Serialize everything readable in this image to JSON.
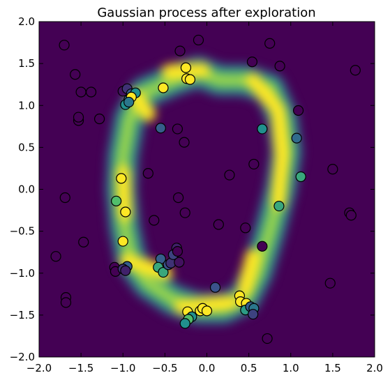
{
  "chart_data": {
    "type": "scatter",
    "title": "Gaussian process after exploration",
    "xlabel": "",
    "ylabel": "",
    "xlim": [
      -2.0,
      2.0
    ],
    "ylim": [
      -2.0,
      2.0
    ],
    "x_ticks": [
      "−2.0",
      "−1.5",
      "−1.0",
      "−0.5",
      "0.0",
      "0.5",
      "1.0",
      "1.5",
      "2.0"
    ],
    "y_ticks": [
      "2.0",
      "1.5",
      "1.0",
      "0.5",
      "0.0",
      "−0.5",
      "−1.0",
      "−1.5",
      "−2.0"
    ],
    "grid": false,
    "background": "heatmap",
    "colormap": [
      "#440154",
      "#3b528b",
      "#21908d",
      "#5dc963",
      "#fde725"
    ],
    "points": [
      {
        "x": -1.7,
        "y": 1.72,
        "v": 0
      },
      {
        "x": -1.57,
        "y": 1.37,
        "v": 0
      },
      {
        "x": -1.5,
        "y": 1.16,
        "v": 0
      },
      {
        "x": -1.38,
        "y": 1.16,
        "v": 0
      },
      {
        "x": -1.53,
        "y": 0.82,
        "v": 0
      },
      {
        "x": -1.53,
        "y": 0.86,
        "v": 0
      },
      {
        "x": -1.28,
        "y": 0.84,
        "v": 0
      },
      {
        "x": -1.69,
        "y": -0.1,
        "v": 0
      },
      {
        "x": -1.47,
        "y": -0.63,
        "v": 0
      },
      {
        "x": -1.8,
        "y": -0.8,
        "v": 0
      },
      {
        "x": -1.1,
        "y": -0.93,
        "v": 0
      },
      {
        "x": -1.09,
        "y": -0.98,
        "v": 0
      },
      {
        "x": -1.68,
        "y": -1.29,
        "v": 0
      },
      {
        "x": -1.68,
        "y": -1.35,
        "v": 0
      },
      {
        "x": -1.0,
        "y": 1.17,
        "v": 0.05
      },
      {
        "x": -0.95,
        "y": 1.2,
        "v": 0.15
      },
      {
        "x": -0.9,
        "y": 1.14,
        "v": 0.3
      },
      {
        "x": -0.85,
        "y": 1.15,
        "v": 0.5
      },
      {
        "x": -0.93,
        "y": 1.07,
        "v": 0.35
      },
      {
        "x": -0.97,
        "y": 1.01,
        "v": 0.5
      },
      {
        "x": -0.9,
        "y": 1.1,
        "v": 1
      },
      {
        "x": -0.93,
        "y": 1.04,
        "v": 0.4
      },
      {
        "x": -0.55,
        "y": 0.73,
        "v": 0.3
      },
      {
        "x": -0.52,
        "y": 1.21,
        "v": 1
      },
      {
        "x": -0.25,
        "y": 1.45,
        "v": 1
      },
      {
        "x": -0.24,
        "y": 1.32,
        "v": 1
      },
      {
        "x": -0.2,
        "y": 1.31,
        "v": 1
      },
      {
        "x": -0.32,
        "y": 1.65,
        "v": 0
      },
      {
        "x": -0.1,
        "y": 1.78,
        "v": 0
      },
      {
        "x": -0.35,
        "y": 0.72,
        "v": 0
      },
      {
        "x": -0.27,
        "y": 0.56,
        "v": 0
      },
      {
        "x": -0.7,
        "y": 0.19,
        "v": 0
      },
      {
        "x": -1.02,
        "y": 0.13,
        "v": 1
      },
      {
        "x": -1.08,
        "y": -0.14,
        "v": 0.7
      },
      {
        "x": -0.97,
        "y": -0.27,
        "v": 1
      },
      {
        "x": -0.63,
        "y": -0.37,
        "v": 0
      },
      {
        "x": -0.34,
        "y": -0.1,
        "v": 0
      },
      {
        "x": -0.26,
        "y": -0.28,
        "v": 0
      },
      {
        "x": -1.0,
        "y": -0.62,
        "v": 1
      },
      {
        "x": -0.95,
        "y": -0.92,
        "v": 0.3
      },
      {
        "x": -1.0,
        "y": -0.95,
        "v": 0.15
      },
      {
        "x": -0.97,
        "y": -0.97,
        "v": 0.1
      },
      {
        "x": -0.55,
        "y": -0.83,
        "v": 0.3
      },
      {
        "x": -0.58,
        "y": -0.93,
        "v": 0.6
      },
      {
        "x": -0.52,
        "y": -0.99,
        "v": 0.6
      },
      {
        "x": -0.46,
        "y": -0.9,
        "v": 0.25
      },
      {
        "x": -0.43,
        "y": -0.88,
        "v": 0.15
      },
      {
        "x": -0.4,
        "y": -0.78,
        "v": 0.2
      },
      {
        "x": -0.36,
        "y": -0.7,
        "v": 0.1
      },
      {
        "x": -0.33,
        "y": -0.87,
        "v": 0.05
      },
      {
        "x": -0.35,
        "y": -0.74,
        "v": 0
      },
      {
        "x": -0.23,
        "y": -1.46,
        "v": 1
      },
      {
        "x": -0.18,
        "y": -1.52,
        "v": 0.5
      },
      {
        "x": -0.22,
        "y": -1.55,
        "v": 0.7
      },
      {
        "x": -0.26,
        "y": -1.6,
        "v": 0.5
      },
      {
        "x": -0.08,
        "y": -1.45,
        "v": 1
      },
      {
        "x": -0.05,
        "y": -1.42,
        "v": 1
      },
      {
        "x": 0.0,
        "y": -1.45,
        "v": 1
      },
      {
        "x": 0.1,
        "y": -1.17,
        "v": 0.25
      },
      {
        "x": 0.14,
        "y": -0.42,
        "v": 0
      },
      {
        "x": 0.27,
        "y": 0.17,
        "v": 0
      },
      {
        "x": 0.39,
        "y": -1.27,
        "v": 1
      },
      {
        "x": 0.4,
        "y": -1.34,
        "v": 1
      },
      {
        "x": 0.47,
        "y": -1.36,
        "v": 1
      },
      {
        "x": 0.46,
        "y": -1.44,
        "v": 0.55
      },
      {
        "x": 0.52,
        "y": -1.4,
        "v": 0.3
      },
      {
        "x": 0.56,
        "y": -1.42,
        "v": 0.4
      },
      {
        "x": 0.55,
        "y": -1.49,
        "v": 0.2
      },
      {
        "x": 0.46,
        "y": -0.46,
        "v": 0
      },
      {
        "x": 0.56,
        "y": 0.3,
        "v": 0
      },
      {
        "x": 0.54,
        "y": 1.52,
        "v": 0
      },
      {
        "x": 0.75,
        "y": 1.74,
        "v": 0
      },
      {
        "x": 0.87,
        "y": 1.47,
        "v": 0
      },
      {
        "x": 0.66,
        "y": 0.72,
        "v": 0.5
      },
      {
        "x": 0.66,
        "y": -0.68,
        "v": 0
      },
      {
        "x": 0.72,
        "y": -1.78,
        "v": 0
      },
      {
        "x": 0.86,
        "y": -0.2,
        "v": 0.6
      },
      {
        "x": 1.07,
        "y": 0.61,
        "v": 0.35
      },
      {
        "x": 1.09,
        "y": 0.94,
        "v": 0
      },
      {
        "x": 1.12,
        "y": 0.15,
        "v": 0.6
      },
      {
        "x": 1.5,
        "y": 0.24,
        "v": 0
      },
      {
        "x": 1.7,
        "y": -0.28,
        "v": 0
      },
      {
        "x": 1.72,
        "y": -0.31,
        "v": 0
      },
      {
        "x": 1.77,
        "y": 1.42,
        "v": 0
      },
      {
        "x": 1.47,
        "y": -1.12,
        "v": 0
      }
    ]
  }
}
